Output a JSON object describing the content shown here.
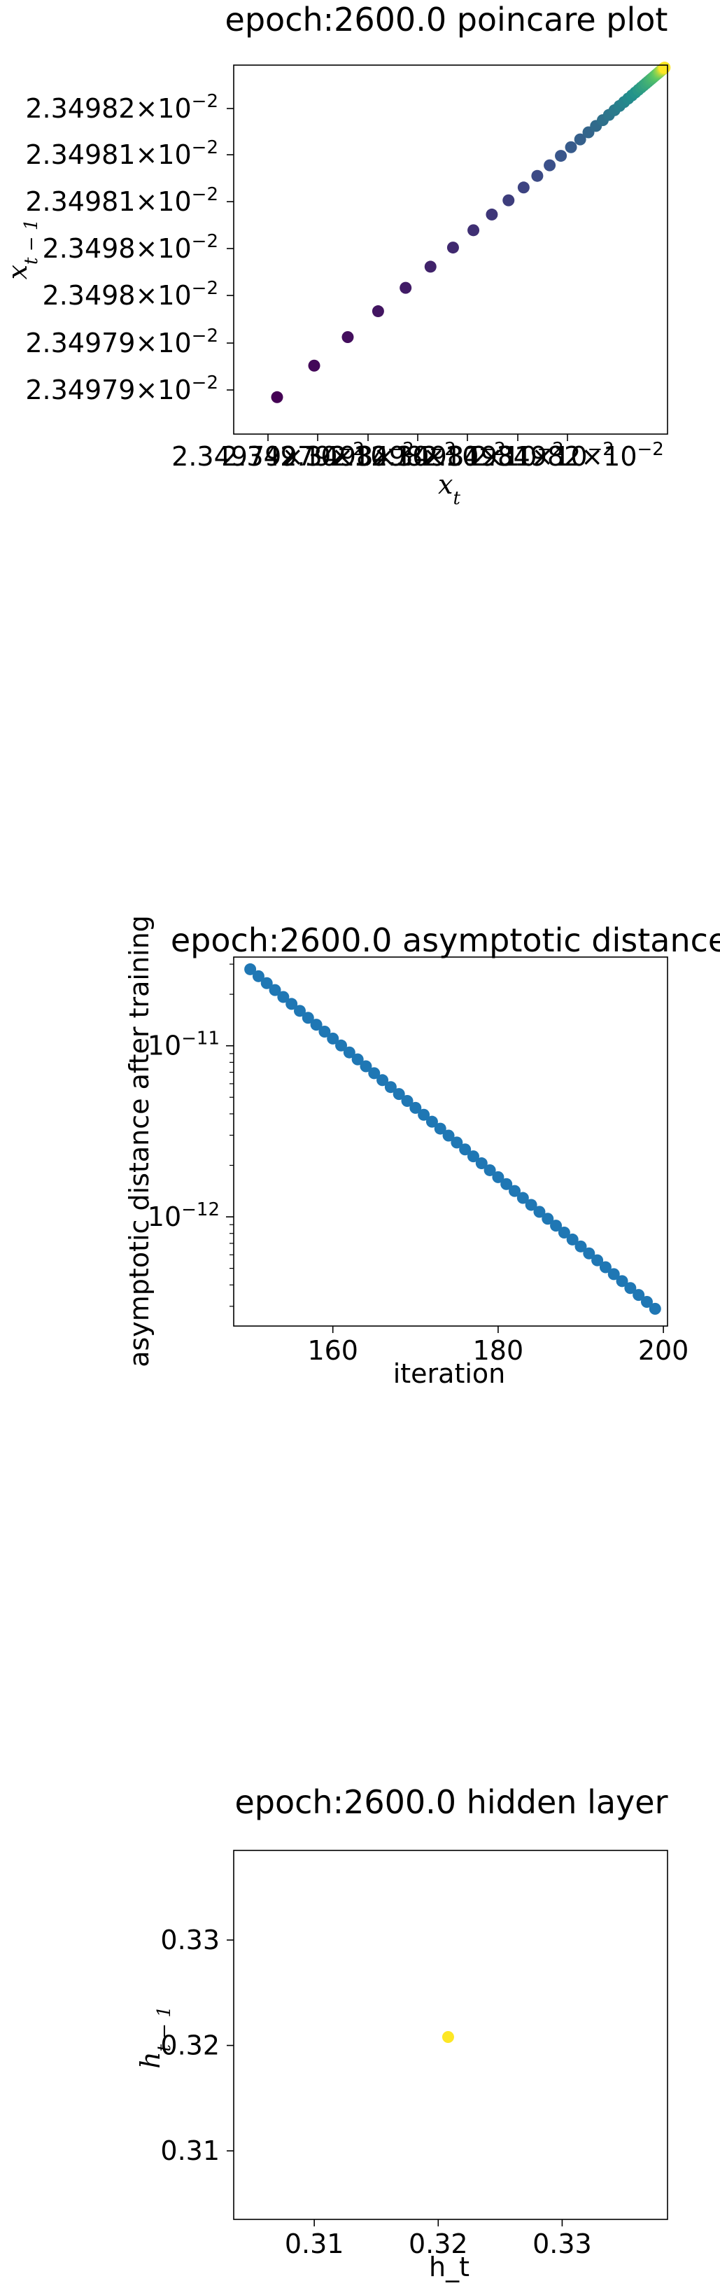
{
  "chart_data": [
    {
      "type": "scatter",
      "title": "epoch:2600.0 poincare plot",
      "xlabel": "x_t",
      "ylabel": "x_{t-1}",
      "x_ticks": [
        "2.34979×10^-2",
        "2.34979×10^-2",
        "2.3498×10^-2",
        "2.3498×10^-2",
        "2.34981×10^-2",
        "2.34981×10^-2",
        "2.34982×10^-2"
      ],
      "y_ticks": [
        "2.34982×10^-2",
        "2.34981×10^-2",
        "2.34981×10^-2",
        "2.3498×10^-2",
        "2.3498×10^-2",
        "2.34979×10^-2",
        "2.34979×10^-2"
      ],
      "xlim": [
        0.0234978,
        0.0234983
      ],
      "ylim": [
        0.0234978,
        0.0234983
      ],
      "x": [
        0.02349785,
        0.023498,
        0.02349815,
        0.0234983
      ],
      "y": [
        0.02349785,
        0.023498,
        0.02349815,
        0.0234983
      ],
      "n_points": 50,
      "colormap": [
        "#440154",
        "#3b528b",
        "#21918c",
        "#5ec962",
        "#fde725"
      ],
      "grid": false
    },
    {
      "type": "scatter",
      "title": "epoch:2600.0 asymptotic distance",
      "xlabel": "iteration",
      "ylabel": "asymptotic distance after training",
      "yscale": "log",
      "x_ticks": [
        "160",
        "180",
        "200"
      ],
      "y_ticks": [
        "10^{-11}",
        "10^{-12}"
      ],
      "xlim": [
        148,
        200.5
      ],
      "ylim": [
        2.3e-13,
        3.3e-11
      ],
      "x_start": 150,
      "x_end": 199,
      "y_start": 2.8e-11,
      "y_end": 2.9e-13,
      "color": "#1f77b4",
      "grid": false
    },
    {
      "type": "scatter",
      "title": "epoch:2600.0 hidden layer",
      "xlabel": "h_t",
      "ylabel": "h_{t-1}",
      "x_ticks": [
        "0.31",
        "0.32",
        "0.33"
      ],
      "y_ticks": [
        "0.33",
        "0.32",
        "0.31"
      ],
      "xlim": [
        0.3035,
        0.3385
      ],
      "ylim": [
        0.3035,
        0.3385
      ],
      "x": [
        0.3208
      ],
      "y": [
        0.3208
      ],
      "color": "#fde725",
      "grid": false
    }
  ]
}
